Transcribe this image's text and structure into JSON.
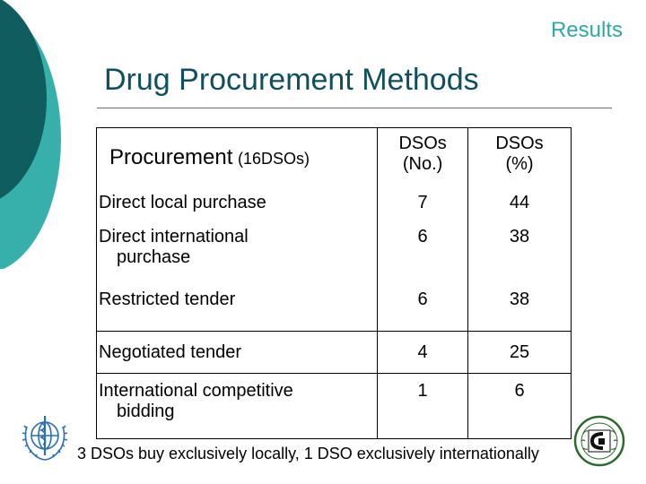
{
  "header": {
    "section_label": "Results",
    "title": "Drug Procurement Methods"
  },
  "table": {
    "header": {
      "col1_main": "Procurement",
      "col1_sub": "(16DSOs)",
      "col2_line1": "DSOs",
      "col2_line2": "(No.)",
      "col3_line1": "DSOs",
      "col3_line2": "(%)"
    },
    "rows": [
      {
        "method_line1": "Direct local purchase",
        "method_line2": "",
        "count": "7",
        "percent": "44"
      },
      {
        "method_line1": "Direct international",
        "method_line2": "purchase",
        "count": "6",
        "percent": "38"
      },
      {
        "method_line1": "Restricted tender",
        "method_line2": "",
        "count": "6",
        "percent": "38"
      },
      {
        "method_line1": "Negotiated tender",
        "method_line2": "",
        "count": "4",
        "percent": "25"
      },
      {
        "method_line1": "International competitive",
        "method_line2": "bidding",
        "count": "1",
        "percent": "6"
      }
    ]
  },
  "footnote": "3 DSOs buy exclusively locally, 1 DSO exclusively internationally",
  "theme": {
    "accent_teal": "#2fa7a6",
    "dark_teal": "#0f4f5e",
    "icons": [
      "who-emblem-icon",
      "institution-seal-icon"
    ]
  }
}
